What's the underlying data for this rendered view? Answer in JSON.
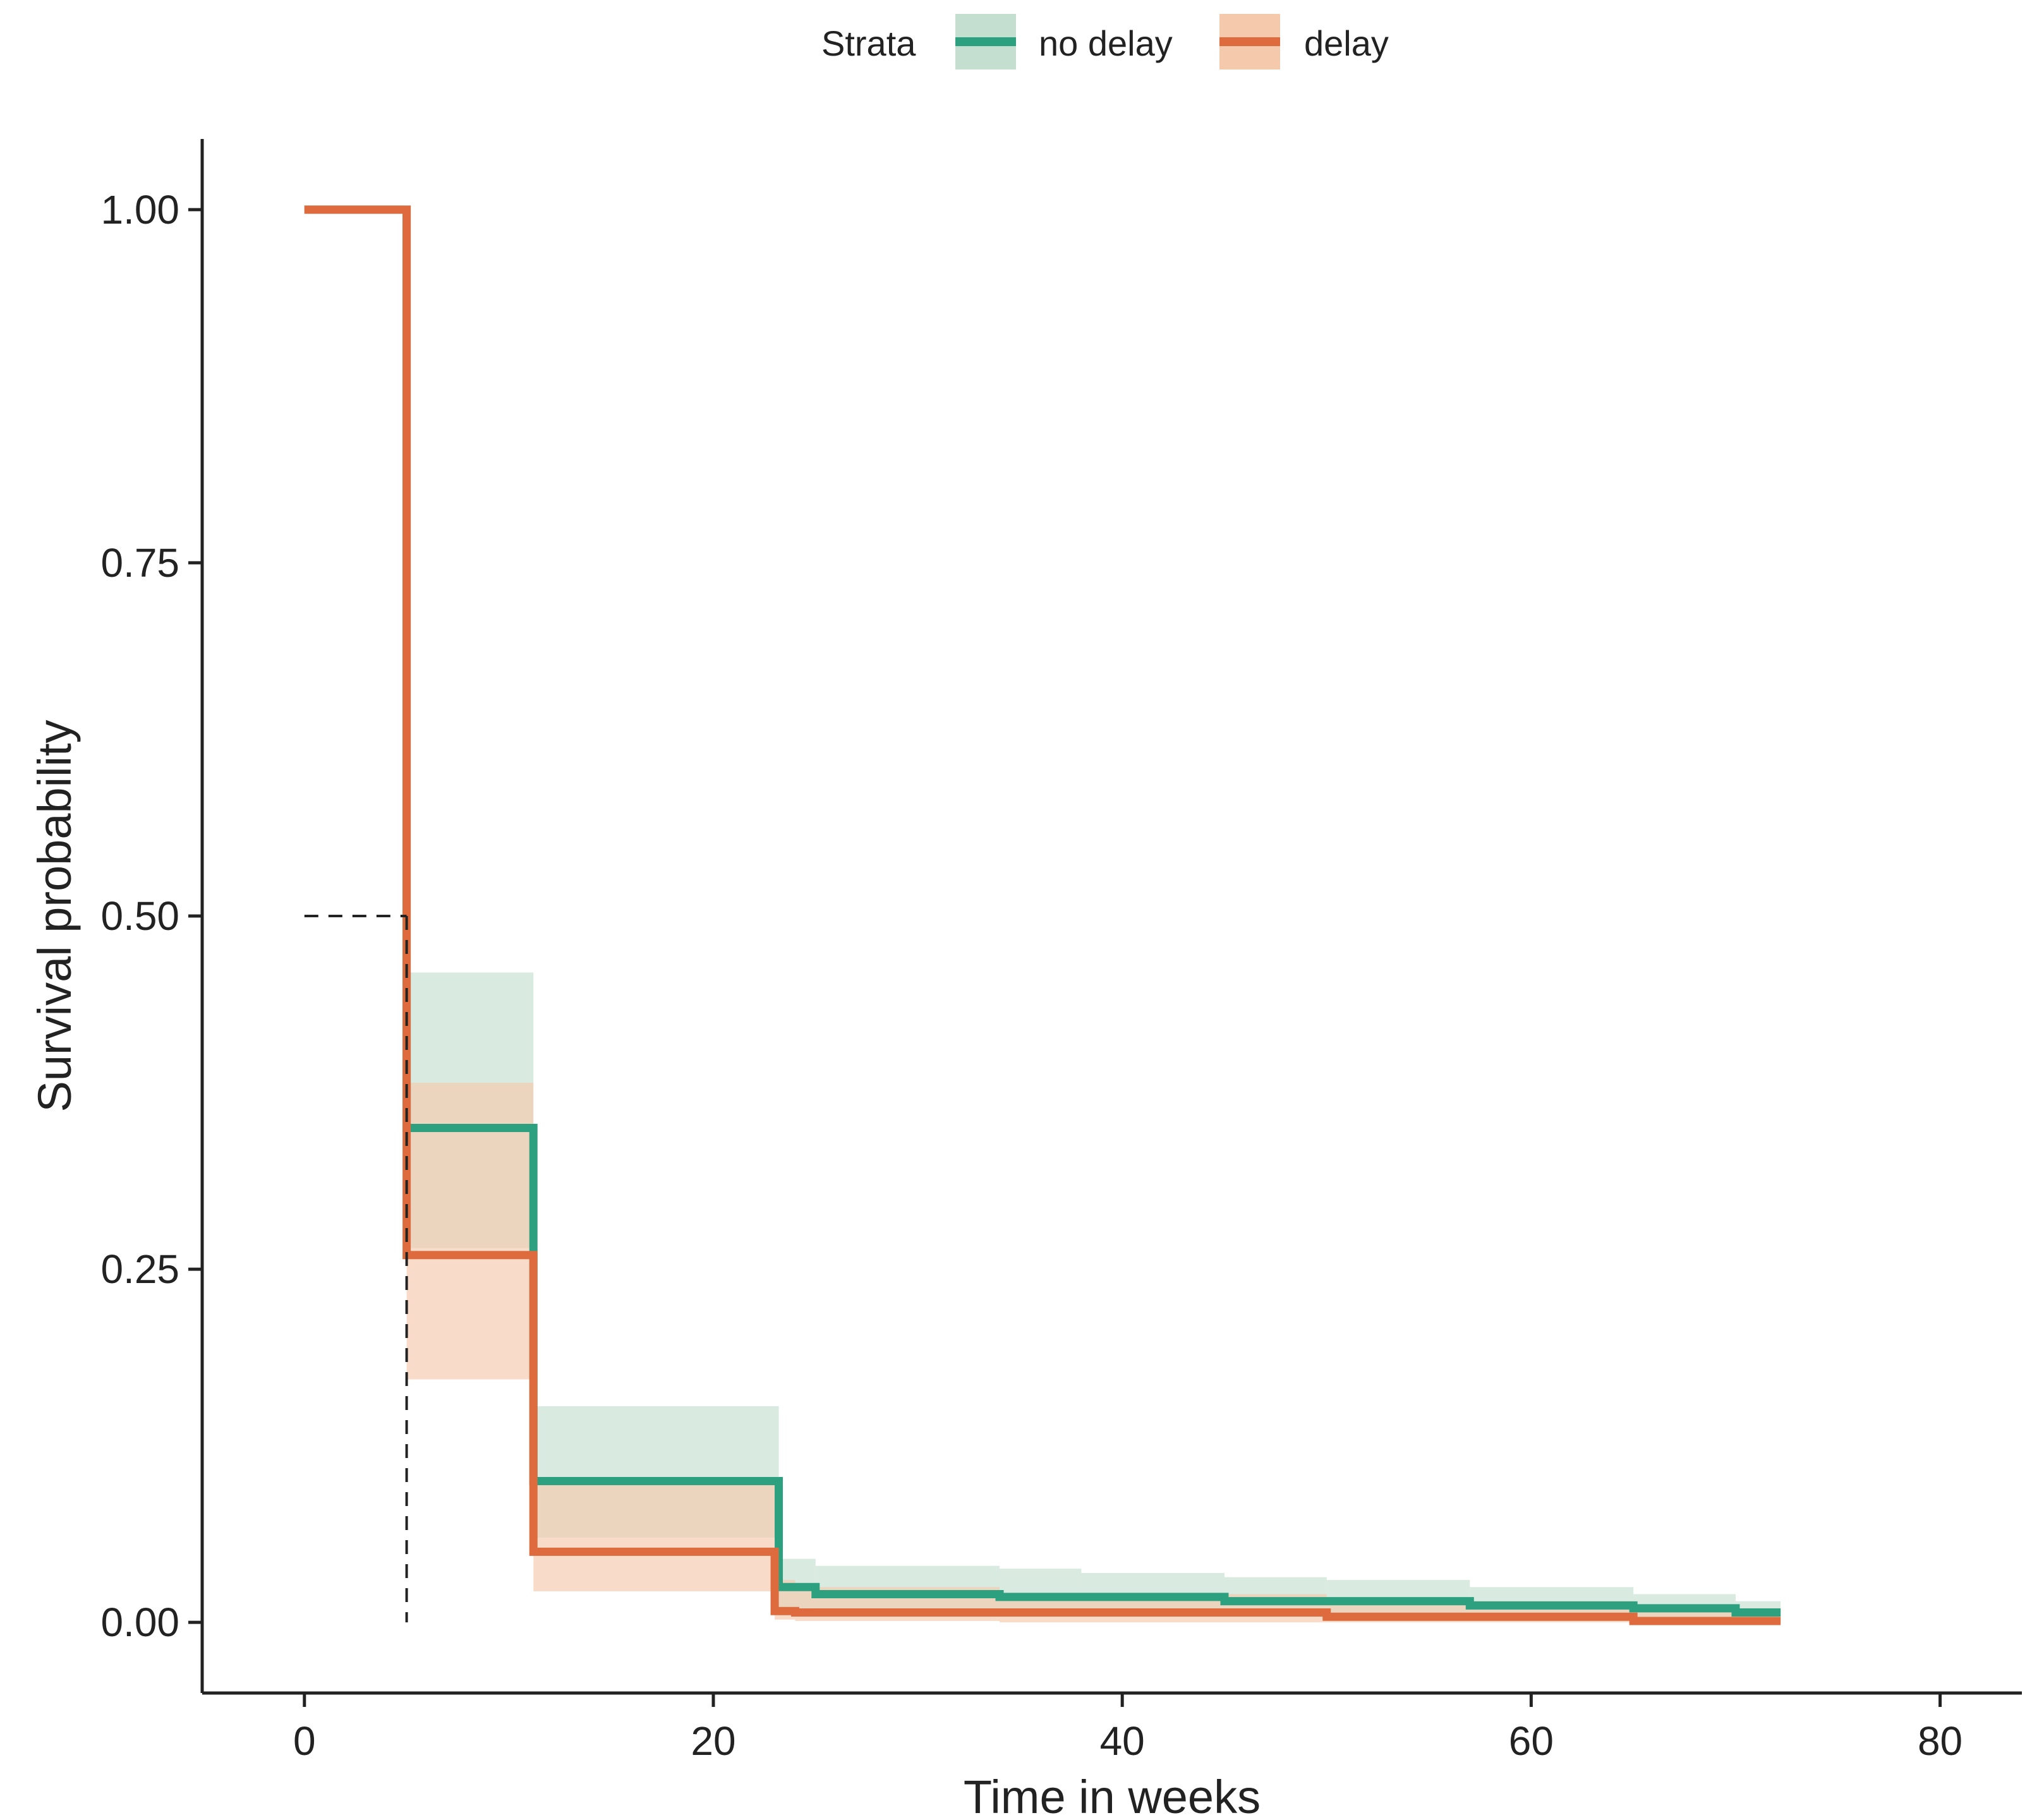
{
  "chart_data": {
    "type": "line",
    "subtype": "kaplan-meier step",
    "title": "",
    "xlabel": "Time in weeks",
    "ylabel": "Survival probability",
    "xlim": [
      -5,
      84
    ],
    "ylim": [
      -0.05,
      1.05
    ],
    "x_ticks": [
      0,
      20,
      40,
      60,
      80
    ],
    "x_tick_labels": [
      "0",
      "20",
      "40",
      "60",
      "80"
    ],
    "y_ticks": [
      0,
      0.25,
      0.5,
      0.75,
      1.0
    ],
    "y_tick_labels": [
      "0.00",
      "0.25",
      "0.50",
      "0.75",
      "1.00"
    ],
    "grid": false,
    "legend": {
      "title": "Strata",
      "placement": "top",
      "entries": [
        "no delay",
        "delay"
      ]
    },
    "median_line": {
      "y": 0.5,
      "x": 5
    },
    "series": [
      {
        "name": "no delay",
        "color": "#2ca07f",
        "band_color": "#c4dfd0",
        "steps": [
          {
            "x": 0,
            "y": 1.0,
            "lower": 1.0,
            "upper": 1.0
          },
          {
            "x": 5,
            "y": 0.35,
            "lower": 0.265,
            "upper": 0.46
          },
          {
            "x": 11.2,
            "y": 0.1,
            "lower": 0.06,
            "upper": 0.153
          },
          {
            "x": 23.2,
            "y": 0.025,
            "lower": 0.01,
            "upper": 0.045
          },
          {
            "x": 25,
            "y": 0.02,
            "lower": 0.007,
            "upper": 0.04
          },
          {
            "x": 34,
            "y": 0.018,
            "lower": 0.006,
            "upper": 0.038
          },
          {
            "x": 38,
            "y": 0.018,
            "lower": 0.006,
            "upper": 0.035
          },
          {
            "x": 45,
            "y": 0.015,
            "lower": 0.005,
            "upper": 0.032
          },
          {
            "x": 50,
            "y": 0.015,
            "lower": 0.004,
            "upper": 0.03
          },
          {
            "x": 57,
            "y": 0.012,
            "lower": 0.003,
            "upper": 0.025
          },
          {
            "x": 65,
            "y": 0.01,
            "lower": 0.002,
            "upper": 0.02
          },
          {
            "x": 70,
            "y": 0.007,
            "lower": 0.001,
            "upper": 0.015
          },
          {
            "x": 72.2,
            "y": 0.007,
            "lower": 0.001,
            "upper": 0.015
          }
        ]
      },
      {
        "name": "delay",
        "color": "#dd6b3d",
        "band_color": "#f5c9ac",
        "steps": [
          {
            "x": 0,
            "y": 1.0,
            "lower": 1.0,
            "upper": 1.0
          },
          {
            "x": 5,
            "y": 0.26,
            "lower": 0.172,
            "upper": 0.382
          },
          {
            "x": 11.2,
            "y": 0.05,
            "lower": 0.022,
            "upper": 0.1
          },
          {
            "x": 23,
            "y": 0.008,
            "lower": 0.002,
            "upper": 0.03
          },
          {
            "x": 24,
            "y": 0.007,
            "lower": 0.001,
            "upper": 0.025
          },
          {
            "x": 34,
            "y": 0.007,
            "lower": 0.0,
            "upper": 0.02
          },
          {
            "x": 50,
            "y": 0.004,
            "lower": 0.0,
            "upper": 0.015
          },
          {
            "x": 65,
            "y": 0.001,
            "lower": 0.0,
            "upper": 0.01
          },
          {
            "x": 72.2,
            "y": 0.001,
            "lower": 0.0,
            "upper": 0.01
          }
        ]
      }
    ]
  }
}
